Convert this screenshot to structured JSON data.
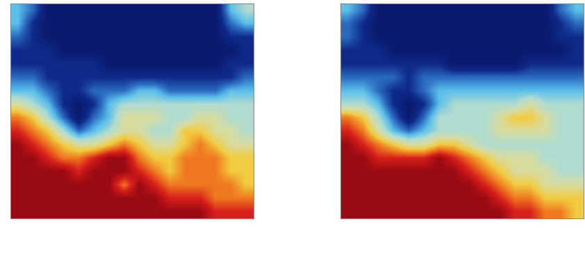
{
  "chart_data": [
    {
      "type": "heatmap",
      "tick_labels": false,
      "zlim": [
        0,
        9
      ],
      "cells": [
        [
          3,
          2,
          0,
          0,
          0,
          0,
          0,
          0,
          0,
          0,
          0,
          0,
          0,
          0,
          3,
          4
        ],
        [
          3,
          1,
          0,
          0,
          0,
          0,
          0,
          0,
          0,
          0,
          0,
          0,
          0,
          0,
          2,
          3
        ],
        [
          2,
          1,
          0,
          0,
          0,
          0,
          0,
          0,
          0,
          0,
          0,
          0,
          0,
          0,
          1,
          1
        ],
        [
          1,
          1,
          1,
          0,
          0,
          0,
          0,
          0,
          0,
          0,
          0,
          0,
          0,
          0,
          0,
          1
        ],
        [
          1,
          1,
          1,
          1,
          1,
          1,
          0,
          0,
          0,
          0,
          0,
          0,
          0,
          0,
          1,
          1
        ],
        [
          2,
          2,
          1,
          1,
          1,
          1,
          1,
          1,
          1,
          1,
          1,
          1,
          1,
          1,
          1,
          2
        ],
        [
          3,
          3,
          2,
          1,
          1,
          2,
          2,
          2,
          3,
          3,
          2,
          2,
          2,
          2,
          3,
          3
        ],
        [
          5,
          4,
          3,
          1,
          0,
          1,
          3,
          4,
          4,
          4,
          4,
          4,
          4,
          4,
          4,
          4
        ],
        [
          7,
          6,
          4,
          2,
          0,
          2,
          3,
          5,
          5,
          5,
          4,
          4,
          5,
          5,
          4,
          4
        ],
        [
          8,
          7,
          6,
          4,
          2,
          3,
          4,
          5,
          5,
          4,
          4,
          6,
          6,
          5,
          5,
          4
        ],
        [
          9,
          8,
          7,
          6,
          5,
          5,
          6,
          7,
          6,
          5,
          5,
          6,
          7,
          6,
          5,
          5
        ],
        [
          9,
          9,
          8,
          7,
          7,
          8,
          9,
          9,
          7,
          6,
          6,
          7,
          7,
          7,
          6,
          6
        ],
        [
          9,
          9,
          9,
          9,
          8,
          9,
          9,
          9,
          8,
          7,
          6,
          7,
          7,
          7,
          6,
          6
        ],
        [
          9,
          9,
          9,
          9,
          9,
          9,
          9,
          7,
          9,
          8,
          7,
          7,
          7,
          7,
          7,
          6
        ],
        [
          9,
          9,
          9,
          9,
          9,
          9,
          9,
          9,
          9,
          9,
          8,
          8,
          8,
          7,
          7,
          7
        ],
        [
          9,
          9,
          9,
          9,
          9,
          9,
          9,
          9,
          9,
          9,
          9,
          9,
          9,
          8,
          8,
          8
        ]
      ]
    },
    {
      "type": "heatmap",
      "tick_labels": false,
      "zlim": [
        0,
        9
      ],
      "cells": [
        [
          3,
          2,
          0,
          0,
          0,
          0,
          0,
          0,
          0,
          0,
          0,
          0,
          0,
          0,
          2,
          3
        ],
        [
          2,
          1,
          0,
          0,
          0,
          0,
          0,
          0,
          0,
          0,
          0,
          0,
          0,
          0,
          1,
          2
        ],
        [
          2,
          1,
          0,
          0,
          0,
          0,
          0,
          0,
          0,
          0,
          0,
          0,
          0,
          0,
          1,
          1
        ],
        [
          1,
          1,
          1,
          0,
          0,
          0,
          0,
          0,
          0,
          0,
          0,
          0,
          0,
          0,
          0,
          1
        ],
        [
          1,
          1,
          1,
          1,
          1,
          1,
          1,
          0,
          0,
          0,
          0,
          0,
          1,
          1,
          1,
          1
        ],
        [
          2,
          2,
          2,
          2,
          1,
          2,
          2,
          2,
          2,
          2,
          2,
          2,
          2,
          2,
          2,
          2
        ],
        [
          3,
          3,
          2,
          1,
          1,
          2,
          3,
          3,
          3,
          3,
          3,
          3,
          3,
          3,
          3,
          3
        ],
        [
          4,
          4,
          3,
          1,
          0,
          1,
          3,
          4,
          4,
          4,
          4,
          4,
          5,
          4,
          4,
          4
        ],
        [
          7,
          6,
          4,
          2,
          0,
          2,
          4,
          4,
          4,
          4,
          5,
          6,
          6,
          5,
          4,
          4
        ],
        [
          8,
          7,
          5,
          3,
          2,
          3,
          4,
          4,
          4,
          4,
          5,
          5,
          5,
          5,
          4,
          4
        ],
        [
          9,
          8,
          7,
          6,
          5,
          5,
          6,
          6,
          5,
          4,
          4,
          4,
          4,
          4,
          4,
          4
        ],
        [
          9,
          9,
          8,
          8,
          8,
          8,
          9,
          8,
          7,
          6,
          5,
          5,
          5,
          4,
          4,
          4
        ],
        [
          9,
          9,
          9,
          9,
          9,
          9,
          9,
          9,
          8,
          7,
          6,
          5,
          5,
          5,
          4,
          4
        ],
        [
          9,
          9,
          9,
          9,
          9,
          9,
          9,
          9,
          9,
          8,
          7,
          6,
          6,
          5,
          5,
          5
        ],
        [
          9,
          9,
          9,
          9,
          9,
          9,
          9,
          9,
          9,
          9,
          8,
          7,
          7,
          6,
          6,
          6
        ],
        [
          9,
          9,
          9,
          9,
          9,
          9,
          9,
          9,
          9,
          9,
          9,
          8,
          8,
          7,
          7,
          6
        ]
      ]
    }
  ]
}
